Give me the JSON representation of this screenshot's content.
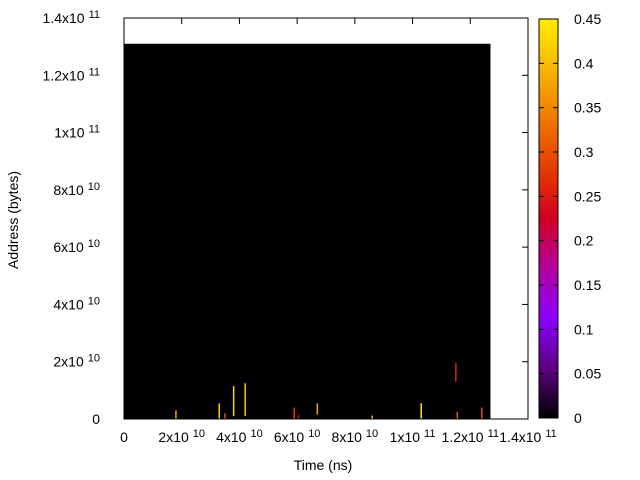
{
  "chart_data": {
    "type": "heatmap",
    "title": "",
    "xlabel": "Time (ns)",
    "ylabel": "Address (bytes)",
    "xlim": [
      0,
      140000000000
    ],
    "ylim": [
      0,
      140000000000
    ],
    "x_ticks": [
      {
        "value": 0,
        "label": "0",
        "exp": ""
      },
      {
        "value": 20000000000,
        "label": "2x10",
        "exp": "10"
      },
      {
        "value": 40000000000,
        "label": "4x10",
        "exp": "10"
      },
      {
        "value": 60000000000,
        "label": "6x10",
        "exp": "10"
      },
      {
        "value": 80000000000,
        "label": "8x10",
        "exp": "10"
      },
      {
        "value": 100000000000,
        "label": "1x10",
        "exp": "11"
      },
      {
        "value": 120000000000,
        "label": "1.2x10",
        "exp": "11"
      },
      {
        "value": 140000000000,
        "label": "1.4x10",
        "exp": "11"
      }
    ],
    "y_ticks": [
      {
        "value": 0,
        "label": "0",
        "exp": ""
      },
      {
        "value": 20000000000,
        "label": "2x10",
        "exp": "10"
      },
      {
        "value": 40000000000,
        "label": "4x10",
        "exp": "10"
      },
      {
        "value": 60000000000,
        "label": "6x10",
        "exp": "10"
      },
      {
        "value": 80000000000,
        "label": "8x10",
        "exp": "10"
      },
      {
        "value": 100000000000,
        "label": "1x10",
        "exp": "11"
      },
      {
        "value": 120000000000,
        "label": "1.2x10",
        "exp": "11"
      },
      {
        "value": 140000000000,
        "label": "1.4x10",
        "exp": "11"
      }
    ],
    "background_region": {
      "x": [
        0,
        127000000000
      ],
      "y": [
        0,
        131000000000
      ],
      "value": 0
    },
    "hot_spots": [
      {
        "x": 18000000000,
        "y0": 0,
        "y1": 3000000000,
        "value": 0.38
      },
      {
        "x": 33000000000,
        "y0": 0,
        "y1": 5500000000,
        "value": 0.42
      },
      {
        "x": 35000000000,
        "y0": 0,
        "y1": 2000000000,
        "value": 0.3
      },
      {
        "x": 38000000000,
        "y0": 1000000000,
        "y1": 11500000000,
        "value": 0.43
      },
      {
        "x": 42000000000,
        "y0": 1000000000,
        "y1": 12500000000,
        "value": 0.4
      },
      {
        "x": 59000000000,
        "y0": 0,
        "y1": 4000000000,
        "value": 0.28
      },
      {
        "x": 60500000000,
        "y0": 0,
        "y1": 1500000000,
        "value": 0.22
      },
      {
        "x": 67000000000,
        "y0": 1500000000,
        "y1": 5500000000,
        "value": 0.38
      },
      {
        "x": 86000000000,
        "y0": 0,
        "y1": 1200000000,
        "value": 0.42
      },
      {
        "x": 103000000000,
        "y0": 0,
        "y1": 5500000000,
        "value": 0.44
      },
      {
        "x": 115000000000,
        "y0": 13000000000,
        "y1": 19500000000,
        "value": 0.26
      },
      {
        "x": 115500000000,
        "y0": 0,
        "y1": 2500000000,
        "value": 0.3
      },
      {
        "x": 124000000000,
        "y0": 0,
        "y1": 4000000000,
        "value": 0.3
      }
    ],
    "colorbar": {
      "range": [
        0,
        0.45
      ],
      "ticks": [
        "0",
        "0.05",
        "0.1",
        "0.15",
        "0.2",
        "0.25",
        "0.3",
        "0.35",
        "0.4",
        "0.45"
      ],
      "palette": [
        "#000000",
        "#5e0083",
        "#8a00ff",
        "#b3009f",
        "#d1001f",
        "#e33c00",
        "#ef7900",
        "#f7b500",
        "#ffed00"
      ]
    },
    "grid": false,
    "legend": "colorbar-right"
  }
}
